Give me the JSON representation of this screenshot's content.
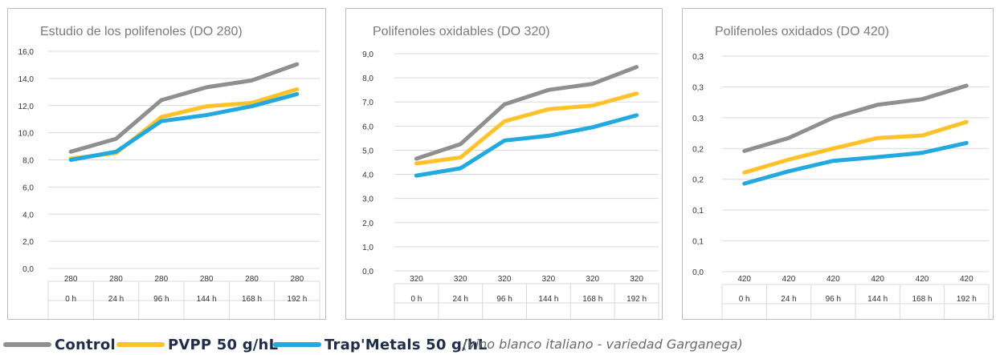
{
  "colors": {
    "control": "#8f8f8f",
    "pvpp": "#ffc22a",
    "trapmetals": "#22a9e0",
    "grid": "#d9d9d9",
    "text": "#333333"
  },
  "legend": {
    "items": [
      {
        "label": "Control",
        "color": "#8f8f8f"
      },
      {
        "label": "PVPP 50 g/hL",
        "color": "#ffc22a"
      },
      {
        "label": "Trap'Metals 50 g/hL",
        "color": "#22a9e0"
      }
    ],
    "note": "(vino blanco italiano - variedad Garganega)"
  },
  "chart_data": [
    {
      "type": "line",
      "title": "Estudio de los polifenoles (DO 280)",
      "categories_row1": [
        "280",
        "280",
        "280",
        "280",
        "280",
        "280"
      ],
      "categories_row2": [
        "0 h",
        "24 h",
        "96 h",
        "144 h",
        "168 h",
        "192 h"
      ],
      "ylim": [
        0,
        16
      ],
      "yticks": [
        0,
        2,
        4,
        6,
        8,
        10,
        12,
        14,
        16
      ],
      "ytick_labels": [
        "0,0",
        "2,0",
        "4,0",
        "6,0",
        "8,0",
        "10,0",
        "12,0",
        "14,0",
        "16,0"
      ],
      "grid": true,
      "series": [
        {
          "name": "Control",
          "color": "#8f8f8f",
          "values": [
            8.6,
            9.55,
            12.4,
            13.35,
            13.85,
            15.05
          ]
        },
        {
          "name": "PVPP 50 g/hL",
          "color": "#ffc22a",
          "values": [
            8.1,
            8.5,
            11.15,
            11.95,
            12.2,
            13.2
          ]
        },
        {
          "name": "Trap'Metals 50 g/hL",
          "color": "#22a9e0",
          "values": [
            8.0,
            8.6,
            10.85,
            11.3,
            11.95,
            12.85
          ]
        }
      ]
    },
    {
      "type": "line",
      "title": "Polifenoles oxidables (DO 320)",
      "categories_row1": [
        "320",
        "320",
        "320",
        "320",
        "320",
        "320"
      ],
      "categories_row2": [
        "0 h",
        "24 h",
        "96 h",
        "144 h",
        "168 h",
        "192 h"
      ],
      "ylim": [
        0,
        9
      ],
      "yticks": [
        0,
        1,
        2,
        3,
        4,
        5,
        6,
        7,
        8,
        9
      ],
      "ytick_labels": [
        "0,0",
        "1,0",
        "2,0",
        "3,0",
        "4,0",
        "5,0",
        "6,0",
        "7,0",
        "8,0",
        "9,0"
      ],
      "grid": true,
      "series": [
        {
          "name": "Control",
          "color": "#8f8f8f",
          "values": [
            4.65,
            5.25,
            6.9,
            7.5,
            7.75,
            8.45
          ]
        },
        {
          "name": "PVPP 50 g/hL",
          "color": "#ffc22a",
          "values": [
            4.45,
            4.7,
            6.2,
            6.7,
            6.85,
            7.35
          ]
        },
        {
          "name": "Trap'Metals 50 g/hL",
          "color": "#22a9e0",
          "values": [
            3.95,
            4.25,
            5.4,
            5.6,
            5.95,
            6.45
          ]
        }
      ]
    },
    {
      "type": "line",
      "title": "Polifenoles oxidados (DO 420)",
      "categories_row1": [
        "420",
        "420",
        "420",
        "420",
        "420",
        "420"
      ],
      "categories_row2": [
        "0 h",
        "24 h",
        "96 h",
        "144 h",
        "168 h",
        "192 h"
      ],
      "ylim": [
        0,
        0.35
      ],
      "yticks": [
        0,
        0.05,
        0.1,
        0.15,
        0.2,
        0.25,
        0.3,
        0.35
      ],
      "ytick_labels": [
        "0,0",
        "0,1",
        "0,1",
        "0,2",
        "0,2",
        "0,3",
        "0,3",
        "0,3"
      ],
      "grid": true,
      "series": [
        {
          "name": "Control",
          "color": "#8f8f8f",
          "values": [
            0.196,
            0.217,
            0.25,
            0.271,
            0.28,
            0.302
          ]
        },
        {
          "name": "PVPP 50 g/hL",
          "color": "#ffc22a",
          "values": [
            0.161,
            0.182,
            0.2,
            0.217,
            0.221,
            0.243
          ]
        },
        {
          "name": "Trap'Metals 50 g/hL",
          "color": "#22a9e0",
          "values": [
            0.143,
            0.163,
            0.18,
            0.186,
            0.193,
            0.209
          ]
        }
      ]
    }
  ]
}
